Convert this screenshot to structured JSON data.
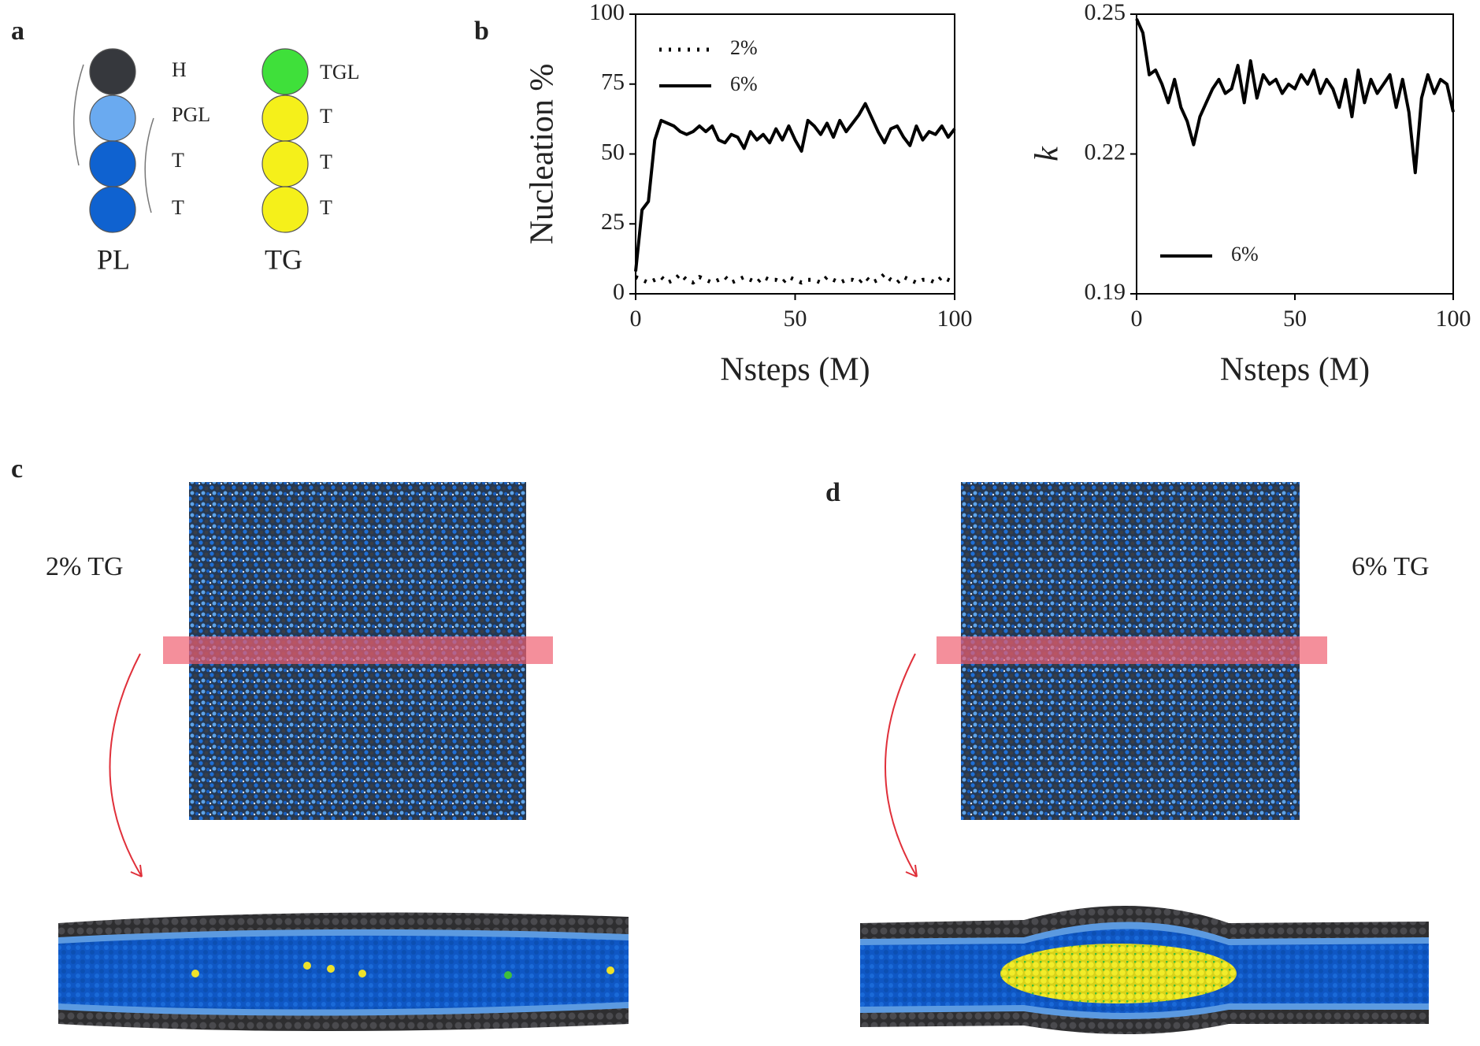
{
  "panels": {
    "a": "a",
    "b": "b",
    "c": "c",
    "d": "d"
  },
  "schematic": {
    "pl": {
      "name": "PL",
      "beads": [
        "H",
        "PGL",
        "T",
        "T"
      ]
    },
    "tg": {
      "name": "TG",
      "beads": [
        "TGL",
        "T",
        "T",
        "T"
      ]
    }
  },
  "snapshots": {
    "c": "2% TG",
    "d": "6% TG"
  },
  "chart_data": [
    {
      "type": "line",
      "ylabel": "Nucleation %",
      "xlabel": "Nsteps (M)",
      "legend": "upper left",
      "xlim": [
        0,
        100
      ],
      "xticks": [
        0,
        50,
        100
      ],
      "ylim": [
        0,
        100
      ],
      "yticks": [
        0,
        25,
        50,
        75,
        100
      ],
      "x": [
        0,
        2,
        4,
        6,
        8,
        10,
        12,
        14,
        16,
        18,
        20,
        22,
        24,
        26,
        28,
        30,
        32,
        34,
        36,
        38,
        40,
        42,
        44,
        46,
        48,
        50,
        52,
        54,
        56,
        58,
        60,
        62,
        64,
        66,
        68,
        70,
        72,
        74,
        76,
        78,
        80,
        82,
        84,
        86,
        88,
        90,
        92,
        94,
        96,
        98,
        100
      ],
      "series": [
        {
          "name": "2%",
          "color": "#000000",
          "linestyle": "dotted",
          "values": [
            6,
            5,
            4,
            5,
            6,
            4,
            5,
            7,
            5,
            4,
            6,
            5,
            4,
            5,
            6,
            4,
            5,
            6,
            5,
            4,
            6,
            5,
            5,
            4,
            6,
            5,
            4,
            5,
            5,
            4,
            6,
            5,
            4,
            5,
            5,
            4,
            6,
            4,
            5,
            7,
            5,
            4,
            6,
            5,
            4,
            5,
            5,
            4,
            6,
            5,
            4
          ]
        },
        {
          "name": "6%",
          "color": "#000000",
          "linestyle": "solid",
          "values": [
            8,
            30,
            33,
            55,
            62,
            61,
            60,
            58,
            57,
            58,
            60,
            58,
            60,
            55,
            54,
            57,
            56,
            52,
            58,
            55,
            57,
            54,
            59,
            55,
            60,
            55,
            51,
            62,
            60,
            57,
            61,
            56,
            62,
            58,
            61,
            64,
            68,
            63,
            58,
            54,
            59,
            60,
            56,
            53,
            60,
            55,
            58,
            57,
            60,
            56,
            59
          ]
        }
      ]
    },
    {
      "type": "line",
      "ylabel": "k",
      "xlabel": "Nsteps (M)",
      "legend": "lower left",
      "xlim": [
        0,
        100
      ],
      "xticks": [
        0,
        50,
        100
      ],
      "ylim": [
        0.19,
        0.25
      ],
      "yticks": [
        0.19,
        0.22,
        0.25
      ],
      "x": [
        0,
        2,
        4,
        6,
        8,
        10,
        12,
        14,
        16,
        18,
        20,
        22,
        24,
        26,
        28,
        30,
        32,
        34,
        36,
        38,
        40,
        42,
        44,
        46,
        48,
        50,
        52,
        54,
        56,
        58,
        60,
        62,
        64,
        66,
        68,
        70,
        72,
        74,
        76,
        78,
        80,
        82,
        84,
        86,
        88,
        90,
        92,
        94,
        96,
        98,
        100
      ],
      "series": [
        {
          "name": "6%",
          "color": "#000000",
          "linestyle": "solid",
          "values": [
            0.249,
            0.246,
            0.237,
            0.238,
            0.235,
            0.231,
            0.236,
            0.23,
            0.227,
            0.222,
            0.228,
            0.231,
            0.234,
            0.236,
            0.233,
            0.234,
            0.239,
            0.231,
            0.24,
            0.232,
            0.237,
            0.235,
            0.236,
            0.233,
            0.235,
            0.234,
            0.237,
            0.235,
            0.238,
            0.233,
            0.236,
            0.234,
            0.23,
            0.236,
            0.228,
            0.238,
            0.231,
            0.236,
            0.233,
            0.235,
            0.237,
            0.23,
            0.236,
            0.229,
            0.216,
            0.232,
            0.237,
            0.233,
            0.236,
            0.235,
            0.229
          ]
        }
      ]
    }
  ]
}
